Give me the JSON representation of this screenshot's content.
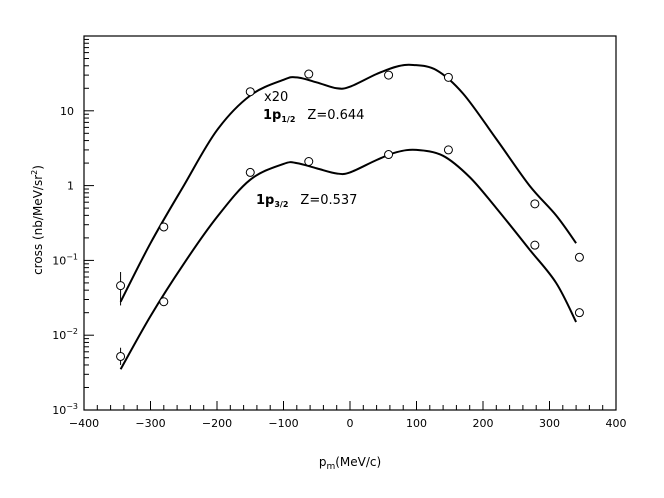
{
  "chart_data": {
    "type": "scatter",
    "ylog": true,
    "xlim": [
      -400,
      400
    ],
    "ylim": [
      0.001,
      100
    ],
    "xticks": [
      -400,
      -300,
      -200,
      -100,
      0,
      100,
      200,
      300,
      400
    ],
    "xtick_labels": [
      "−400",
      "−300",
      "−200",
      "−100",
      "0",
      "100",
      "200",
      "300",
      "400"
    ],
    "yticks": [
      {
        "value": 0.001,
        "base": "10",
        "exp": "−3"
      },
      {
        "value": 0.01,
        "base": "10",
        "exp": "−2"
      },
      {
        "value": 0.1,
        "base": "10",
        "exp": "−1"
      },
      {
        "value": 1,
        "base": "1",
        "exp": ""
      },
      {
        "value": 10,
        "base": "10",
        "exp": ""
      }
    ],
    "xlabel": {
      "main": "p",
      "sub": "m",
      "rest": "(MeV/c)"
    },
    "ylabel": {
      "main": "cross (nb/MeV/sr",
      "sup": "2",
      "rest": ")"
    },
    "series": [
      {
        "points": [
          {
            "x": -345,
            "y": 0.046,
            "err_low": 0.025,
            "err_high": 0.07
          },
          {
            "x": -280,
            "y": 0.28
          },
          {
            "x": -150,
            "y": 18
          },
          {
            "x": -62,
            "y": 31
          },
          {
            "x": 58,
            "y": 30
          },
          {
            "x": 148,
            "y": 28
          },
          {
            "x": 278,
            "y": 0.57
          },
          {
            "x": 345,
            "y": 0.11
          }
        ],
        "fit": [
          {
            "x": -345,
            "y": 0.028
          },
          {
            "x": -300,
            "y": 0.17
          },
          {
            "x": -250,
            "y": 1.0
          },
          {
            "x": -200,
            "y": 5.5
          },
          {
            "x": -150,
            "y": 16
          },
          {
            "x": -100,
            "y": 26
          },
          {
            "x": -80,
            "y": 28
          },
          {
            "x": -50,
            "y": 24
          },
          {
            "x": -20,
            "y": 20
          },
          {
            "x": 0,
            "y": 21
          },
          {
            "x": 40,
            "y": 31
          },
          {
            "x": 70,
            "y": 39
          },
          {
            "x": 95,
            "y": 41
          },
          {
            "x": 130,
            "y": 35
          },
          {
            "x": 170,
            "y": 17
          },
          {
            "x": 220,
            "y": 4.2
          },
          {
            "x": 270,
            "y": 1.0
          },
          {
            "x": 310,
            "y": 0.4
          },
          {
            "x": 340,
            "y": 0.17
          }
        ]
      },
      {
        "points": [
          {
            "x": -345,
            "y": 0.0052,
            "err_low": 0.004,
            "err_high": 0.0068
          },
          {
            "x": -280,
            "y": 0.028
          },
          {
            "x": -150,
            "y": 1.5
          },
          {
            "x": -62,
            "y": 2.1
          },
          {
            "x": 58,
            "y": 2.6
          },
          {
            "x": 148,
            "y": 3.0
          },
          {
            "x": 278,
            "y": 0.16
          },
          {
            "x": 345,
            "y": 0.02
          }
        ],
        "fit": [
          {
            "x": -345,
            "y": 0.0035
          },
          {
            "x": -300,
            "y": 0.018
          },
          {
            "x": -250,
            "y": 0.09
          },
          {
            "x": -200,
            "y": 0.38
          },
          {
            "x": -150,
            "y": 1.2
          },
          {
            "x": -100,
            "y": 1.95
          },
          {
            "x": -80,
            "y": 2.0
          },
          {
            "x": -50,
            "y": 1.7
          },
          {
            "x": -20,
            "y": 1.45
          },
          {
            "x": 0,
            "y": 1.5
          },
          {
            "x": 40,
            "y": 2.2
          },
          {
            "x": 70,
            "y": 2.8
          },
          {
            "x": 100,
            "y": 3.0
          },
          {
            "x": 140,
            "y": 2.5
          },
          {
            "x": 180,
            "y": 1.3
          },
          {
            "x": 220,
            "y": 0.5
          },
          {
            "x": 270,
            "y": 0.14
          },
          {
            "x": 310,
            "y": 0.05
          },
          {
            "x": 340,
            "y": 0.015
          }
        ]
      }
    ],
    "annotations": {
      "x20": "x20",
      "upper_label": {
        "main": "1p",
        "sub": "1/2",
        "z": "Z=0.644"
      },
      "lower_label": {
        "main": "1p",
        "sub": "3/2",
        "z": "Z=0.537"
      }
    }
  }
}
